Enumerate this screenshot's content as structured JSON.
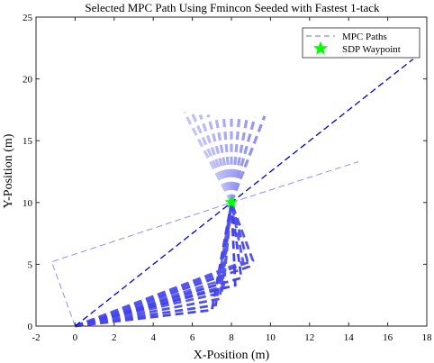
{
  "chart_data": {
    "type": "line",
    "title": "Selected MPC Path Using Fmincon Seeded with Fastest 1-tack",
    "xlabel": "X-Position (m)",
    "ylabel": "Y-Position (m)",
    "xlim": [
      -2,
      18
    ],
    "ylim": [
      0,
      25
    ],
    "xticks": [
      -2,
      0,
      2,
      4,
      6,
      8,
      10,
      12,
      14,
      16,
      18
    ],
    "yticks": [
      0,
      5,
      10,
      15,
      20,
      25
    ],
    "grid": false,
    "legend_position": "top-right",
    "legend": [
      {
        "label": "MPC Paths",
        "kind": "line",
        "color": "#8c8cf0"
      },
      {
        "label": "SDP Waypoint",
        "kind": "star",
        "color": "#00ff00"
      }
    ],
    "waypoint": {
      "x": 8.0,
      "y": 10.0
    },
    "selected_path": {
      "color": "#0000d8",
      "points": [
        [
          0,
          0
        ],
        [
          8,
          10
        ],
        [
          17.3,
          21.6
        ]
      ]
    },
    "outlier_path": {
      "color": "#9090f0",
      "points": [
        [
          0,
          0
        ],
        [
          -1.2,
          5.2
        ],
        [
          8,
          10
        ],
        [
          14.5,
          13.3
        ]
      ]
    },
    "fan_upper": [
      {
        "points": [
          [
            8,
            10
          ],
          [
            5.6,
            17.3
          ]
        ],
        "color": "#c4c4f6"
      },
      {
        "points": [
          [
            8,
            10
          ],
          [
            6.0,
            17.2
          ]
        ],
        "color": "#bfbff6"
      },
      {
        "points": [
          [
            8,
            10
          ],
          [
            6.4,
            17.1
          ]
        ],
        "color": "#babaf6"
      },
      {
        "points": [
          [
            8,
            10
          ],
          [
            6.8,
            17.1
          ]
        ],
        "color": "#b5b5f5"
      },
      {
        "points": [
          [
            8,
            10
          ],
          [
            7.2,
            17.0
          ]
        ],
        "color": "#b0b0f5"
      },
      {
        "points": [
          [
            8,
            10
          ],
          [
            7.6,
            17.0
          ]
        ],
        "color": "#ababf5"
      },
      {
        "points": [
          [
            8,
            10
          ],
          [
            8.0,
            16.9
          ]
        ],
        "color": "#a6a6f4"
      },
      {
        "points": [
          [
            8,
            10
          ],
          [
            8.4,
            16.9
          ]
        ],
        "color": "#a1a1f4"
      },
      {
        "points": [
          [
            8,
            10
          ],
          [
            8.8,
            16.9
          ]
        ],
        "color": "#9c9cf4"
      },
      {
        "points": [
          [
            8,
            10
          ],
          [
            9.2,
            16.9
          ]
        ],
        "color": "#9797f3"
      },
      {
        "points": [
          [
            8,
            10
          ],
          [
            9.7,
            17.0
          ]
        ],
        "color": "#9292f3"
      }
    ],
    "fan_lower": [
      {
        "points": [
          [
            0,
            0
          ],
          [
            7.4,
            4.2
          ],
          [
            8,
            10
          ]
        ],
        "color": "#6a6aee"
      },
      {
        "points": [
          [
            0,
            0
          ],
          [
            7.5,
            3.7
          ],
          [
            8,
            10
          ]
        ],
        "color": "#6464ee"
      },
      {
        "points": [
          [
            0,
            0
          ],
          [
            7.6,
            3.2
          ],
          [
            8,
            10
          ]
        ],
        "color": "#5e5eed"
      },
      {
        "points": [
          [
            0,
            0
          ],
          [
            7.5,
            2.7
          ],
          [
            8,
            10
          ]
        ],
        "color": "#5858ec"
      },
      {
        "points": [
          [
            0,
            0
          ],
          [
            7.4,
            2.2
          ],
          [
            8,
            10
          ]
        ],
        "color": "#5252ec"
      },
      {
        "points": [
          [
            0,
            0
          ],
          [
            7.2,
            1.7
          ],
          [
            8,
            10
          ]
        ],
        "color": "#4c4ceb"
      },
      {
        "points": [
          [
            0,
            0
          ],
          [
            7.0,
            1.3
          ],
          [
            8,
            10
          ]
        ],
        "color": "#4646ea"
      },
      {
        "points": [
          [
            0,
            0
          ],
          [
            8.6,
            5.2
          ],
          [
            8,
            10
          ]
        ],
        "color": "#5a5aed"
      },
      {
        "points": [
          [
            0,
            0
          ],
          [
            9.1,
            5.3
          ],
          [
            8,
            10
          ]
        ],
        "color": "#5454ec"
      },
      {
        "points": [
          [
            0,
            0
          ],
          [
            8.9,
            4.8
          ],
          [
            8,
            10
          ]
        ],
        "color": "#4e4eeb"
      },
      {
        "points": [
          [
            0,
            0
          ],
          [
            8.5,
            3.9
          ],
          [
            8,
            10
          ]
        ],
        "color": "#4848ea"
      },
      {
        "points": [
          [
            0,
            0
          ],
          [
            8.2,
            3.3
          ],
          [
            8,
            10
          ]
        ],
        "color": "#4242ea"
      }
    ]
  }
}
